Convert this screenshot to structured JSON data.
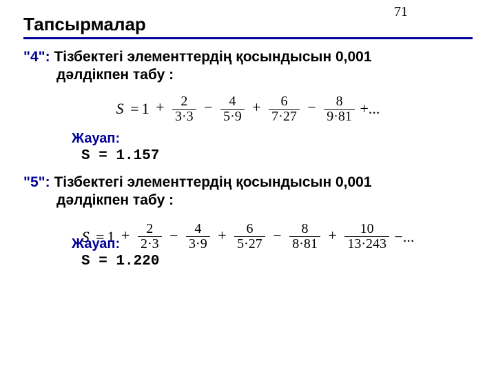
{
  "page_number": "71",
  "title": "Тапсырмалар",
  "colors": {
    "accent": "#000099",
    "text": "#000000",
    "bg": "#ffffff"
  },
  "tasks": [
    {
      "num": "\"4\":",
      "prompt_line1": "Тізбектегі элементтердің қосындысын 0,001",
      "prompt_line2": "дәлдікпен табу :",
      "formula": {
        "lead": "S",
        "eq": "=",
        "first": "1",
        "terms": [
          {
            "sign": "+",
            "num": "2",
            "den": "3·3"
          },
          {
            "sign": "−",
            "num": "4",
            "den": "5·9"
          },
          {
            "sign": "+",
            "num": "6",
            "den": "7·27"
          },
          {
            "sign": "−",
            "num": "8",
            "den": "9·81"
          }
        ],
        "tail": "+..."
      },
      "answer_label": "Жауап:",
      "answer_value": "S = 1.157"
    },
    {
      "num": "\"5\":",
      "prompt_line1": "Тізбектегі элементтердің қосындысын 0,001",
      "prompt_line2": "дәлдікпен табу :",
      "formula": {
        "lead": "S",
        "eq": "=",
        "first": "1",
        "terms": [
          {
            "sign": "+",
            "num": "2",
            "den": "2·3"
          },
          {
            "sign": "−",
            "num": "4",
            "den": "3·9"
          },
          {
            "sign": "+",
            "num": "6",
            "den": "5·27"
          },
          {
            "sign": "−",
            "num": "8",
            "den": "8·81"
          },
          {
            "sign": "+",
            "num": "10",
            "den": "13·243"
          }
        ],
        "tail": "−..."
      },
      "answer_label": "Жауап:",
      "answer_value": "S = 1.220"
    }
  ]
}
